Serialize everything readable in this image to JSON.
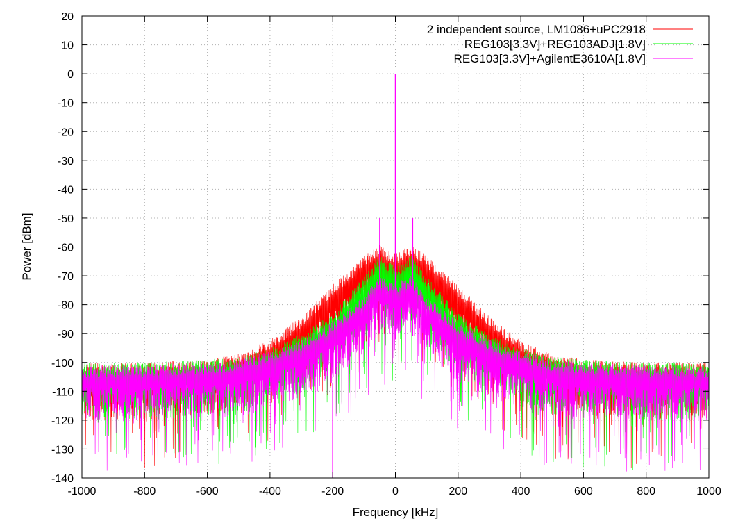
{
  "chart_data": {
    "type": "line",
    "title": "",
    "xlabel": "Frequency [kHz]",
    "ylabel": "Power [dBm]",
    "xlim": [
      -1000,
      1000
    ],
    "ylim": [
      -140,
      20
    ],
    "x_ticks": [
      -1000,
      -800,
      -600,
      -400,
      -200,
      0,
      200,
      400,
      600,
      800,
      1000
    ],
    "y_ticks": [
      20,
      10,
      0,
      -10,
      -20,
      -30,
      -40,
      -50,
      -60,
      -70,
      -80,
      -90,
      -100,
      -110,
      -120,
      -130,
      -140
    ],
    "grid": true,
    "legend_position": "top-right",
    "series": [
      {
        "name": "2 independent source, LM1086+uPC2918",
        "color": "#ff0000",
        "envelope": {
          "x": [
            -1000,
            -800,
            -600,
            -500,
            -400,
            -300,
            -200,
            -100,
            -50,
            -10,
            10,
            50,
            100,
            200,
            300,
            400,
            500,
            600,
            800,
            1000
          ],
          "upper": [
            -100,
            -100,
            -99,
            -97,
            -92,
            -84,
            -73,
            -63,
            -59,
            -62,
            -62,
            -59,
            -63,
            -73,
            -84,
            -92,
            -97,
            -99,
            -100,
            -100
          ],
          "lower": [
            -120,
            -120,
            -118,
            -116,
            -110,
            -103,
            -95,
            -85,
            -81,
            -85,
            -85,
            -81,
            -85,
            -95,
            -103,
            -110,
            -116,
            -118,
            -120,
            -120
          ]
        },
        "spikes": []
      },
      {
        "name": "REG103[3.3V]+REG103ADJ[1.8V]",
        "color": "#00ff00",
        "envelope": {
          "x": [
            -1000,
            -800,
            -600,
            -500,
            -400,
            -300,
            -200,
            -100,
            -50,
            -10,
            10,
            50,
            100,
            200,
            300,
            400,
            500,
            600,
            800,
            1000
          ],
          "upper": [
            -100,
            -100,
            -99,
            -98,
            -95,
            -90,
            -83,
            -70,
            -63,
            -66,
            -66,
            -63,
            -70,
            -83,
            -90,
            -95,
            -98,
            -99,
            -100,
            -100
          ],
          "lower": [
            -120,
            -120,
            -119,
            -118,
            -114,
            -110,
            -103,
            -92,
            -86,
            -90,
            -90,
            -86,
            -92,
            -103,
            -110,
            -114,
            -118,
            -119,
            -120,
            -120
          ]
        },
        "spikes": []
      },
      {
        "name": "REG103[3.3V]+AgilentE3610A[1.8V]",
        "color": "#ff00ff",
        "envelope": {
          "x": [
            -1000,
            -800,
            -600,
            -500,
            -400,
            -300,
            -200,
            -100,
            -50,
            -10,
            10,
            50,
            100,
            200,
            300,
            400,
            500,
            600,
            800,
            1000
          ],
          "upper": [
            -101,
            -101,
            -100,
            -99,
            -96,
            -92,
            -86,
            -77,
            -70,
            -72,
            -72,
            -70,
            -77,
            -86,
            -92,
            -96,
            -99,
            -100,
            -101,
            -101
          ],
          "lower": [
            -120,
            -120,
            -120,
            -119,
            -116,
            -112,
            -107,
            -97,
            -90,
            -92,
            -92,
            -90,
            -97,
            -107,
            -112,
            -116,
            -119,
            -120,
            -120,
            -120
          ]
        },
        "spikes": [
          {
            "x": 0,
            "y": 0
          },
          {
            "x": -50,
            "y": -50
          },
          {
            "x": 55,
            "y": -50
          },
          {
            "x": -200,
            "y": -140
          }
        ]
      }
    ]
  }
}
